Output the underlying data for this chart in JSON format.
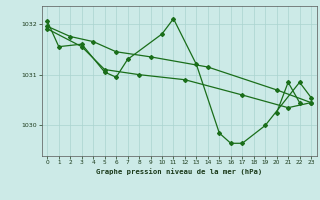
{
  "title": "Graphe pression niveau de la mer (hPa)",
  "background_color": "#cceae7",
  "line_color": "#1a6e1a",
  "grid_color": "#aad4d0",
  "xlim": [
    -0.5,
    23.5
  ],
  "ylim": [
    1029.4,
    1032.35
  ],
  "yticks": [
    1030,
    1031,
    1032
  ],
  "xticks": [
    0,
    1,
    2,
    3,
    4,
    5,
    6,
    7,
    8,
    9,
    10,
    11,
    12,
    13,
    14,
    15,
    16,
    17,
    18,
    19,
    20,
    21,
    22,
    23
  ],
  "series1_x": [
    0,
    1,
    3,
    5,
    6,
    7,
    10,
    11,
    13,
    15,
    16,
    17,
    19,
    22,
    23
  ],
  "series1_y": [
    1032.05,
    1031.55,
    1031.6,
    1031.05,
    1030.95,
    1031.3,
    1031.8,
    1032.1,
    1031.2,
    1029.85,
    1029.65,
    1029.65,
    1030.0,
    1030.85,
    1030.55
  ],
  "series2_x": [
    0,
    2,
    4,
    6,
    9,
    14,
    20,
    23
  ],
  "series2_y": [
    1031.95,
    1031.75,
    1031.65,
    1031.45,
    1031.35,
    1031.15,
    1030.7,
    1030.45
  ],
  "series3_x": [
    0,
    3,
    5,
    8,
    12,
    17,
    21,
    23
  ],
  "series3_y": [
    1031.9,
    1031.55,
    1031.1,
    1031.0,
    1030.9,
    1030.6,
    1030.35,
    1030.45
  ],
  "series4_x": [
    20,
    21,
    22
  ],
  "series4_y": [
    1030.25,
    1030.85,
    1030.45
  ],
  "figwidth": 3.2,
  "figheight": 2.0,
  "dpi": 100
}
